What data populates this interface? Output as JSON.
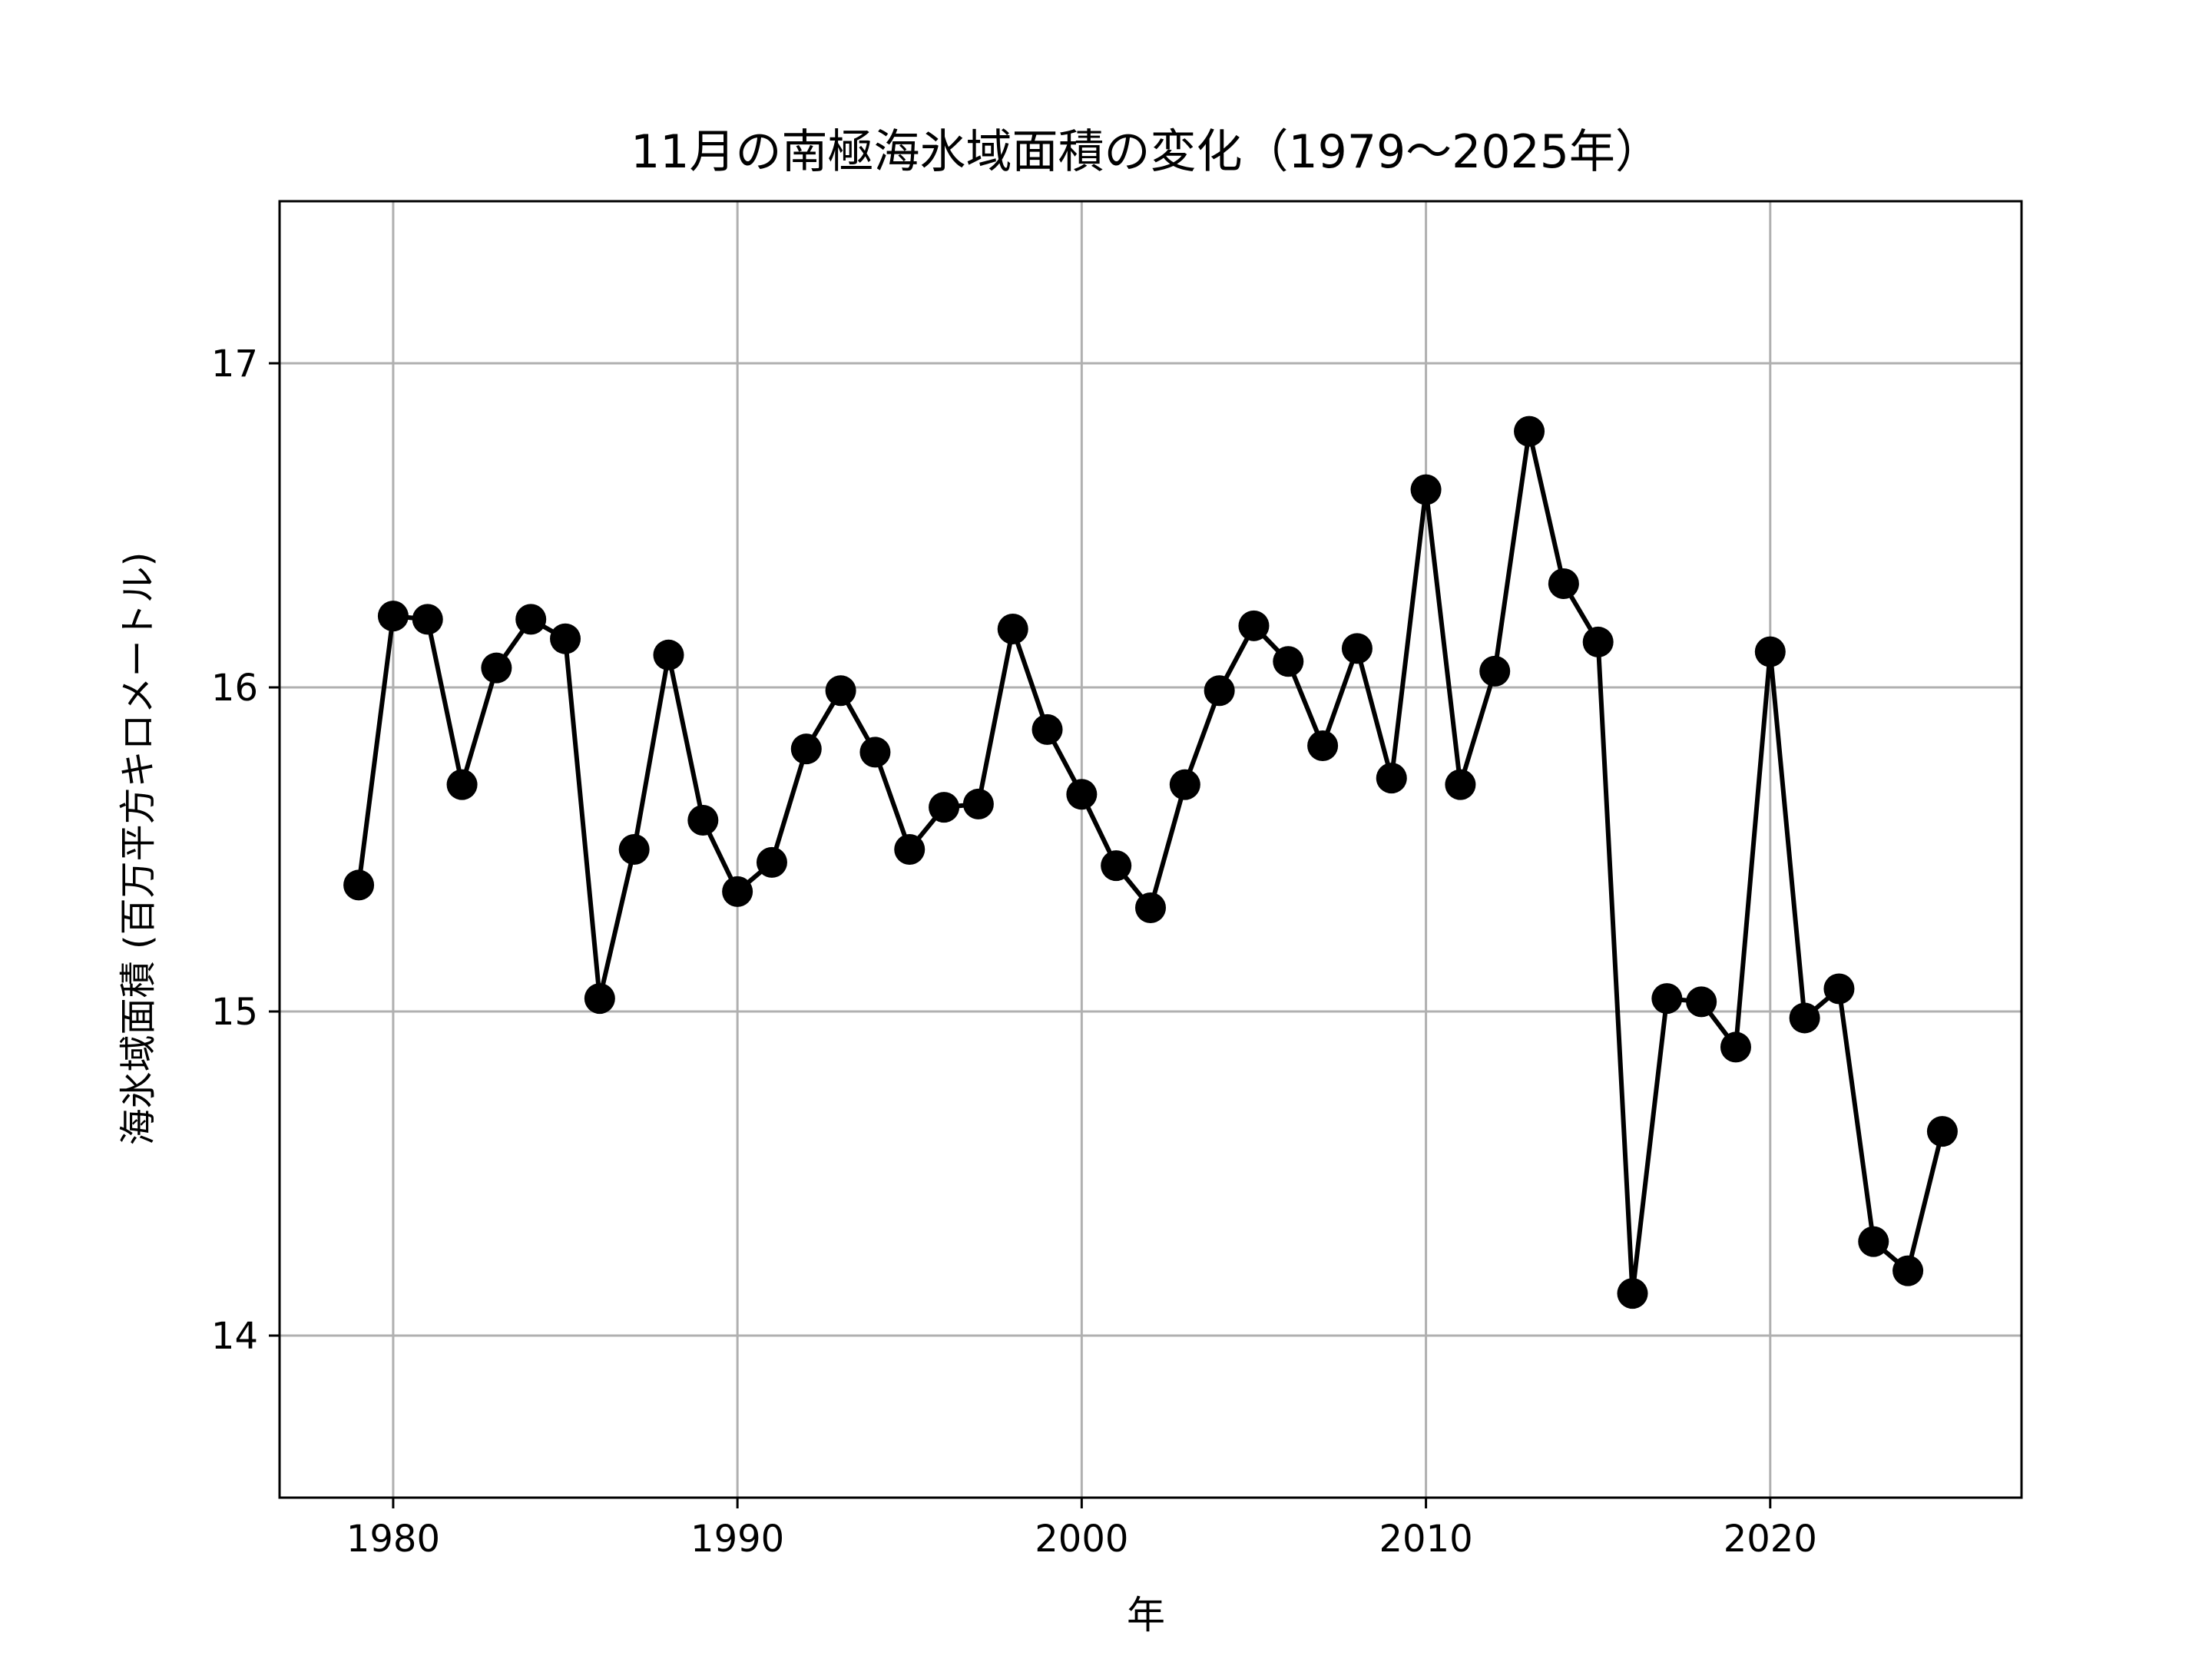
{
  "chart_data": {
    "type": "line",
    "title": "11月の南極海氷域面積の変化（1979〜2025年）",
    "xlabel": "年",
    "ylabel": "海氷域面積 (百万平方キロメートル)",
    "x": [
      1979,
      1980,
      1981,
      1982,
      1983,
      1984,
      1985,
      1986,
      1987,
      1988,
      1989,
      1990,
      1991,
      1992,
      1993,
      1994,
      1995,
      1996,
      1997,
      1998,
      1999,
      2000,
      2001,
      2002,
      2003,
      2004,
      2005,
      2006,
      2007,
      2008,
      2009,
      2010,
      2011,
      2012,
      2013,
      2014,
      2015,
      2016,
      2017,
      2018,
      2019,
      2020,
      2021,
      2022,
      2023,
      2024,
      2025
    ],
    "series": [
      {
        "values": [
          15.39,
          16.22,
          16.21,
          15.7,
          16.06,
          16.21,
          16.15,
          15.04,
          15.5,
          16.1,
          15.59,
          15.37,
          15.46,
          15.81,
          15.99,
          15.8,
          15.5,
          15.63,
          15.64,
          16.18,
          15.87,
          15.67,
          15.45,
          15.32,
          15.7,
          15.99,
          16.19,
          16.08,
          15.82,
          16.12,
          15.72,
          16.61,
          15.7,
          16.05,
          16.79,
          16.32,
          16.14,
          14.13,
          15.04,
          15.03,
          14.89,
          16.11,
          14.98,
          15.07,
          14.29,
          14.2,
          14.63
        ],
        "color": "#000000"
      }
    ],
    "xlim": [
      1976.7,
      2027.3
    ],
    "ylim": [
      13.5,
      17.5
    ],
    "xticks": [
      "1980",
      "1990",
      "2000",
      "2010",
      "2020"
    ],
    "yticks": [
      "14",
      "15",
      "16",
      "17"
    ],
    "grid": true,
    "grid_color": "#b0b0b0",
    "line_color": "#000000",
    "marker": "circle"
  }
}
